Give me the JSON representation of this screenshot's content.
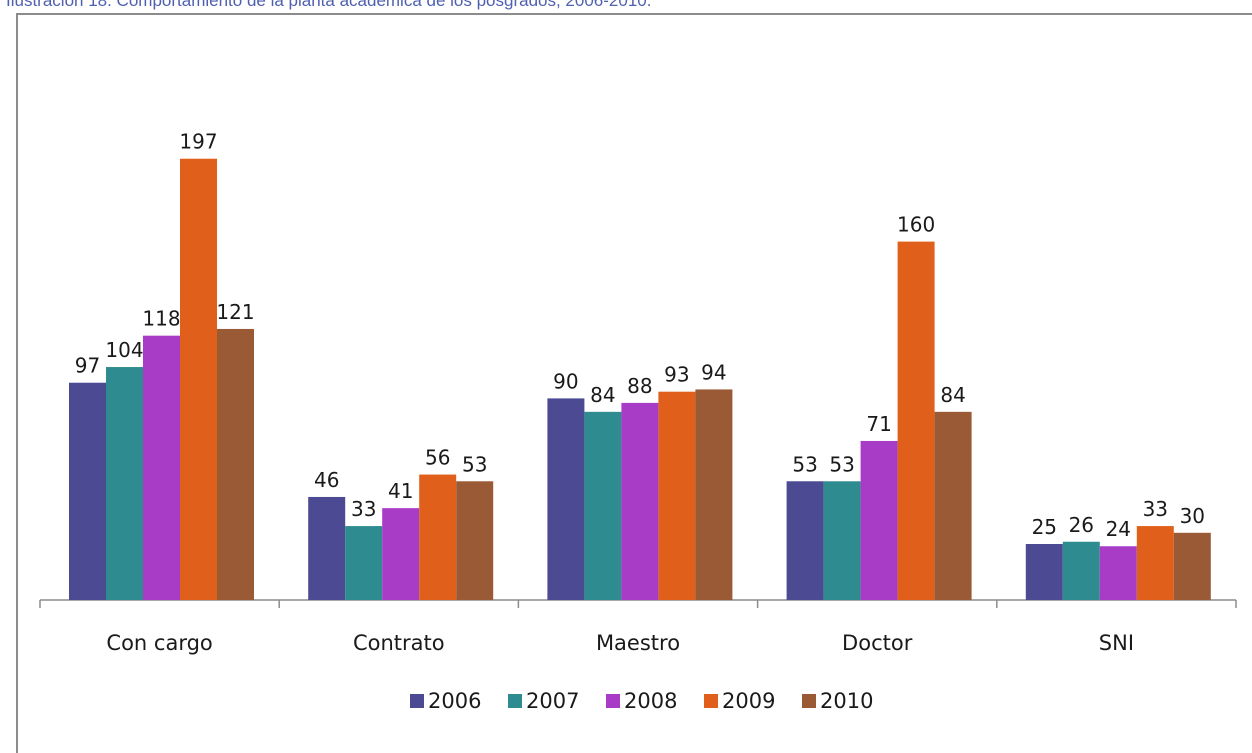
{
  "caption": "Ilustración 18. Comportamiento de la planta académica de los posgrados, 2006-2010.",
  "chart_data": {
    "type": "bar",
    "categories": [
      "Con cargo",
      "Contrato",
      "Maestro",
      "Doctor",
      "SNI"
    ],
    "series": [
      {
        "name": "2006",
        "color": "#4b4a92",
        "values": [
          97,
          46,
          90,
          53,
          25
        ]
      },
      {
        "name": "2007",
        "color": "#2e8b8f",
        "values": [
          104,
          33,
          84,
          53,
          26
        ]
      },
      {
        "name": "2008",
        "color": "#a83cc6",
        "values": [
          118,
          41,
          88,
          71,
          24
        ]
      },
      {
        "name": "2009",
        "color": "#e0601b",
        "values": [
          197,
          56,
          93,
          160,
          33
        ]
      },
      {
        "name": "2010",
        "color": "#9a5a36",
        "values": [
          121,
          53,
          94,
          84,
          30
        ]
      }
    ],
    "ylim": [
      0,
      200
    ],
    "data_labels": true,
    "legend": "bottom",
    "grid": false
  }
}
